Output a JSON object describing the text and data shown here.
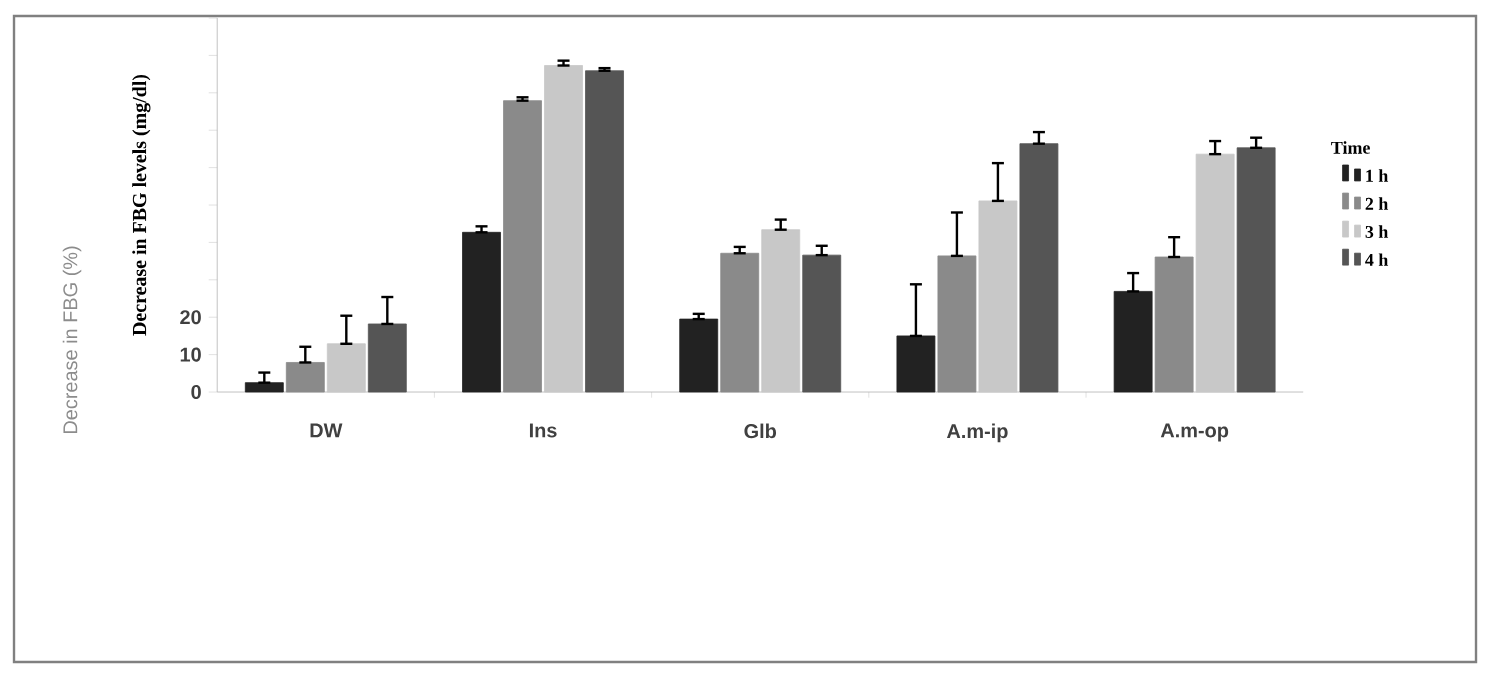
{
  "chart_data": {
    "type": "bar",
    "ylabel": "Decrease in FBG levels (mg/dl)",
    "annotations": [
      "Decrease in FBG (%)"
    ],
    "legend_title": "Time",
    "legend": "right",
    "categories": [
      "DW",
      "Ins",
      "Glb",
      "A.m-ip",
      "A.m-op"
    ],
    "ylim": [
      0,
      100
    ],
    "yticks": [
      0,
      10,
      20,
      {
        "value": 30,
        "label": null
      },
      {
        "value": 40,
        "label": null
      },
      {
        "value": 50,
        "label": null
      },
      {
        "value": 60,
        "label": null
      },
      {
        "value": 70,
        "label": null
      },
      {
        "value": 80,
        "label": null
      },
      {
        "value": 90,
        "label": null
      },
      {
        "value": 100,
        "label": null
      }
    ],
    "grid": false,
    "series": [
      {
        "name": "1 h",
        "color": "#222222",
        "values": [
          2.5,
          42.7,
          19.5,
          15.0,
          26.9
        ],
        "errors": [
          [
            2.5,
            5.2
          ],
          [
            42.7,
            44.3
          ],
          [
            19.5,
            20.9
          ],
          [
            15.0,
            28.8
          ],
          [
            26.9,
            31.8
          ]
        ]
      },
      {
        "name": "2 h",
        "color": "#8a8a8a",
        "values": [
          7.9,
          77.9,
          37.1,
          36.4,
          36.1
        ],
        "errors": [
          [
            7.9,
            12.1
          ],
          [
            77.9,
            78.8
          ],
          [
            37.1,
            38.8
          ],
          [
            36.4,
            48.0
          ],
          [
            36.1,
            41.4
          ]
        ]
      },
      {
        "name": "3 h",
        "color": "#c8c8c8",
        "values": [
          12.9,
          87.3,
          43.4,
          51.1,
          63.6
        ],
        "errors": [
          [
            12.9,
            20.4
          ],
          [
            87.3,
            88.6
          ],
          [
            43.4,
            46.1
          ],
          [
            51.1,
            61.2
          ],
          [
            63.6,
            67.1
          ]
        ]
      },
      {
        "name": "4 h",
        "color": "#555555",
        "values": [
          18.2,
          85.9,
          36.6,
          66.4,
          65.3
        ],
        "errors": [
          [
            18.2,
            25.4
          ],
          [
            85.9,
            86.6
          ],
          [
            36.6,
            39.1
          ],
          [
            66.4,
            69.5
          ],
          [
            65.3,
            68.0
          ]
        ]
      }
    ]
  }
}
